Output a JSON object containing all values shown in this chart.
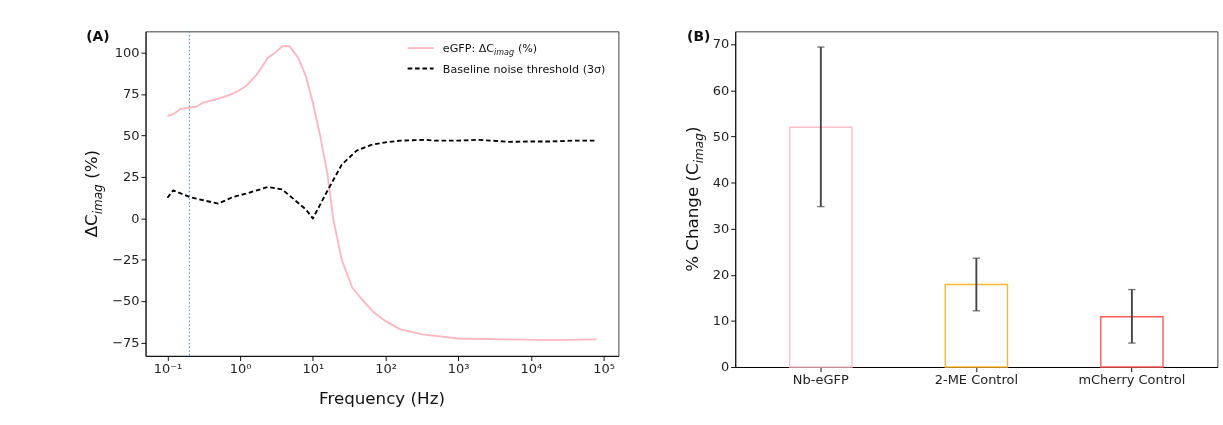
{
  "chart_data": [
    {
      "type": "line",
      "title": "(A)",
      "xlabel": "Frequency (Hz)",
      "ylabel": "ΔC$_{imag}$ (%)",
      "log": "x",
      "grid": false,
      "legend": "top right",
      "xlim": [
        0.05,
        160000
      ],
      "ylim": [
        -83,
        113
      ],
      "xticks": [
        {
          "value": 0.1,
          "label": "10⁻¹"
        },
        {
          "value": 1,
          "label": "10⁰"
        },
        {
          "value": 10,
          "label": "10¹"
        },
        {
          "value": 100,
          "label": "10²"
        },
        {
          "value": 1000,
          "label": "10³"
        },
        {
          "value": 10000,
          "label": "10⁴"
        },
        {
          "value": 100000,
          "label": "10⁵"
        }
      ],
      "yticks": [
        {
          "value": -75,
          "label": "−75"
        },
        {
          "value": -50,
          "label": "−50"
        },
        {
          "value": -25,
          "label": "−25"
        },
        0,
        25,
        50,
        75,
        100
      ],
      "ref_lines": [
        {
          "axis": "x",
          "value": 0.2,
          "color": "#1f77b4",
          "line_style": "dotted"
        }
      ],
      "series": [
        {
          "name": "eGFP: ΔC$_{imag}$ (%)",
          "color": "#ffb6c1",
          "line_style": "solid",
          "x": [
            0.1,
            0.12,
            0.15,
            0.2,
            0.25,
            0.31,
            0.47,
            0.75,
            0.94,
            1.2,
            1.7,
            2.4,
            3.0,
            3.8,
            4.8,
            6.3,
            8,
            10,
            12.6,
            16,
            19,
            25,
            35,
            50,
            70,
            100,
            160,
            320,
            1000,
            4000,
            20000,
            80000
          ],
          "values": [
            62,
            63,
            66,
            67,
            67.5,
            70,
            72,
            75,
            77,
            80,
            87,
            97,
            100,
            104,
            104,
            97,
            86,
            70,
            50,
            26,
            0,
            -25,
            -42,
            -50,
            -57,
            -62,
            -67,
            -70,
            -72.5,
            -73,
            -73.5,
            -73
          ]
        },
        {
          "name": "Baseline noise threshold (3σ)",
          "color": "#000000",
          "line_style": "dashed",
          "x": [
            0.1,
            0.12,
            0.2,
            0.31,
            0.5,
            0.8,
            1.2,
            2.4,
            3.8,
            8,
            10,
            16,
            25,
            40,
            64,
            100,
            160,
            360,
            470,
            1000,
            1900,
            5000,
            9500,
            19000,
            38000,
            80000
          ],
          "values": [
            12.5,
            17,
            13,
            11,
            9,
            13,
            15,
            19,
            17.5,
            5.5,
            0,
            17,
            32.5,
            41,
            44.5,
            46,
            47,
            47.5,
            47,
            47,
            47.5,
            46.3,
            46.5,
            46.5,
            47,
            47
          ]
        }
      ]
    },
    {
      "type": "bar",
      "title": "(B)",
      "ylabel": "% Change (C$_{imag}$)",
      "grid": false,
      "legend": false,
      "categories": [
        "Nb-eGFP",
        "2-ME Control",
        "mCherry Control"
      ],
      "values": [
        52,
        17.9,
        10.9
      ],
      "colors": [
        "#ffc0cb",
        "#ffb732",
        "#ff5a5a"
      ],
      "errors": [
        [
          34.8,
          69.4
        ],
        [
          12.2,
          23.6
        ],
        [
          5.2,
          16.8
        ]
      ],
      "ylim": [
        0,
        72.8
      ],
      "yticks": [
        0,
        10,
        20,
        30,
        40,
        50,
        60,
        70
      ]
    }
  ]
}
